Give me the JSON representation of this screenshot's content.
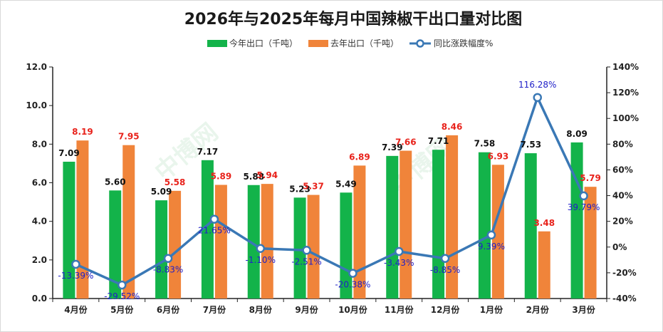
{
  "chart_data": {
    "type": "bar",
    "title": "2026年与2025年每月中国辣椒干出口量对比图",
    "categories": [
      "4月份",
      "5月份",
      "6月份",
      "7月份",
      "8月份",
      "9月份",
      "10月份",
      "11月份",
      "12月份",
      "1月份",
      "2月份",
      "3月份"
    ],
    "series": [
      {
        "name": "今年出口（千吨）",
        "type": "bar",
        "axis": "left",
        "color": "#13b34a",
        "values": [
          7.09,
          5.6,
          5.09,
          7.17,
          5.88,
          5.23,
          5.49,
          7.39,
          7.71,
          7.58,
          7.53,
          8.09
        ]
      },
      {
        "name": "去年出口（千吨）",
        "type": "bar",
        "axis": "left",
        "color": "#f0843a",
        "values": [
          8.19,
          7.95,
          5.58,
          5.89,
          5.94,
          5.37,
          6.89,
          7.66,
          8.46,
          6.93,
          3.48,
          5.79
        ]
      },
      {
        "name": "同比涨跌幅度%",
        "type": "line",
        "axis": "right",
        "color": "#3a78b5",
        "values": [
          -13.39,
          -29.52,
          -8.83,
          21.65,
          -1.1,
          -2.51,
          -20.38,
          -3.43,
          -8.85,
          9.39,
          116.28,
          39.79
        ]
      }
    ],
    "cur_labels": [
      "7.09",
      "5.60",
      "5.09",
      "7.17",
      "5.88",
      "5.23",
      "5.49",
      "7.39",
      "7.71",
      "7.58",
      "7.53",
      "8.09"
    ],
    "prev_labels": [
      "8.19",
      "7.95",
      "5.58",
      "5.89",
      "5.94",
      "5.37",
      "6.89",
      "7.66",
      "8.46",
      "6.93",
      "3.48",
      "5.79"
    ],
    "yoy_labels": [
      "-13.39%",
      "-29.52%",
      "-8.83%",
      "21.65%",
      "-1.10%",
      "-2.51%",
      "-20.38%",
      "-3.43%",
      "-8.85%",
      "9.39%",
      "116.28%",
      "39.79%"
    ],
    "y_left": {
      "min": 0,
      "max": 12,
      "step": 2,
      "tick_labels": [
        "0.0",
        "2.0",
        "4.0",
        "6.0",
        "8.0",
        "10.0",
        "12.0"
      ]
    },
    "y_right": {
      "min": -40,
      "max": 140,
      "step": 20,
      "tick_labels": [
        "-40%",
        "-20%",
        "0%",
        "20%",
        "40%",
        "60%",
        "80%",
        "100%",
        "120%",
        "140%"
      ]
    },
    "legend_position": "top-center",
    "grid": false
  }
}
